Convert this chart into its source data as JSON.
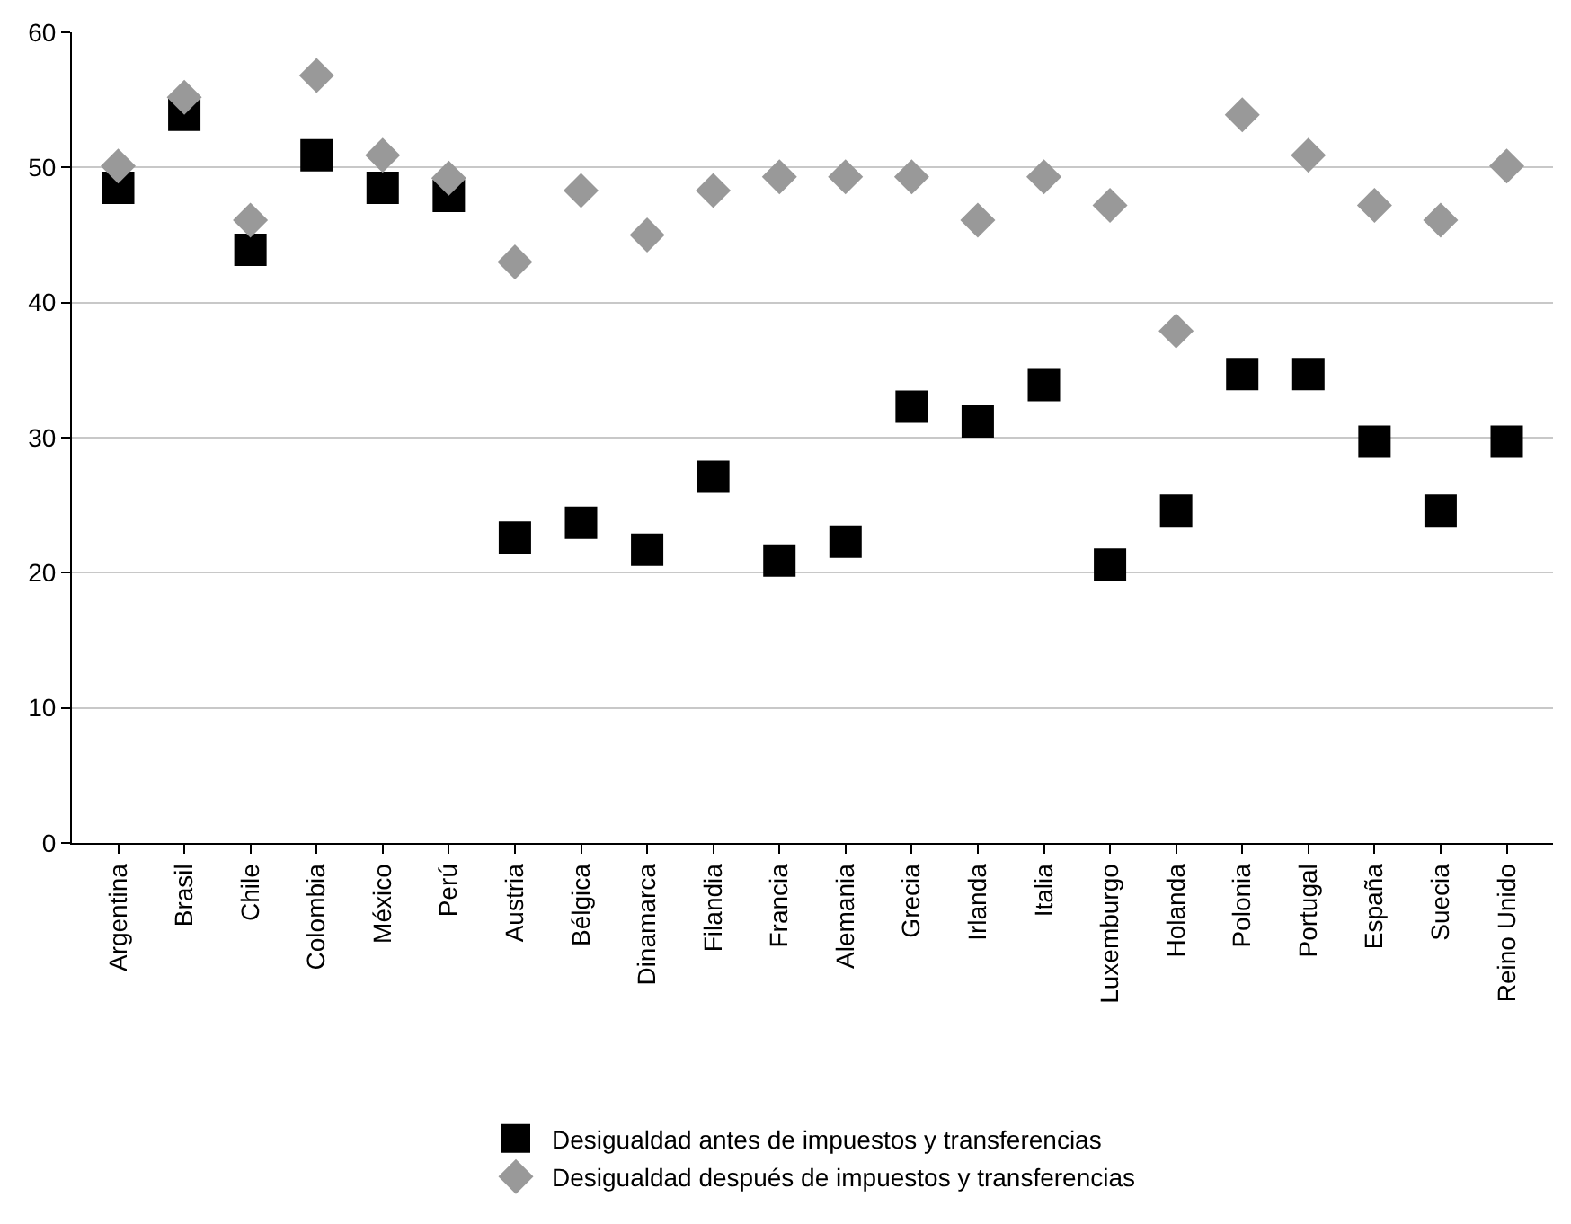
{
  "chart_data": {
    "type": "scatter",
    "categories": [
      "Argentina",
      "Brasil",
      "Chile",
      "Colombia",
      "México",
      "Perú",
      "Austria",
      "Bélgica",
      "Dinamarca",
      "Filandia",
      "Francia",
      "Alemania",
      "Grecia",
      "Irlanda",
      "Italia",
      "Luxemburgo",
      "Holanda",
      "Polonia",
      "Portugal",
      "España",
      "Suecia",
      "Reino Unido"
    ],
    "series": [
      {
        "name": "Desigualdad antes de impuestos y transferencias",
        "color": "#000000",
        "marker": "square",
        "values": [
          48.5,
          53.9,
          43.9,
          50.9,
          48.5,
          47.9,
          22.6,
          23.7,
          21.7,
          27.1,
          20.9,
          22.3,
          32.3,
          31.2,
          33.9,
          20.6,
          24.6,
          34.7,
          34.7,
          29.7,
          24.6,
          29.7
        ]
      },
      {
        "name": "Desigualdad después de impuestos y transferencias",
        "color": "#999999",
        "marker": "diamond",
        "values": [
          50.1,
          55.2,
          46.1,
          56.8,
          50.9,
          49.2,
          43,
          48.3,
          45,
          48.3,
          49.3,
          49.3,
          49.3,
          46.1,
          49.3,
          47.2,
          37.9,
          53.9,
          50.9,
          47.2,
          46.1,
          50.1
        ]
      }
    ],
    "ylim": [
      0,
      60
    ],
    "yticks": [
      0,
      10,
      20,
      30,
      40,
      50,
      60
    ],
    "grid": "y",
    "legend": "bottom"
  }
}
